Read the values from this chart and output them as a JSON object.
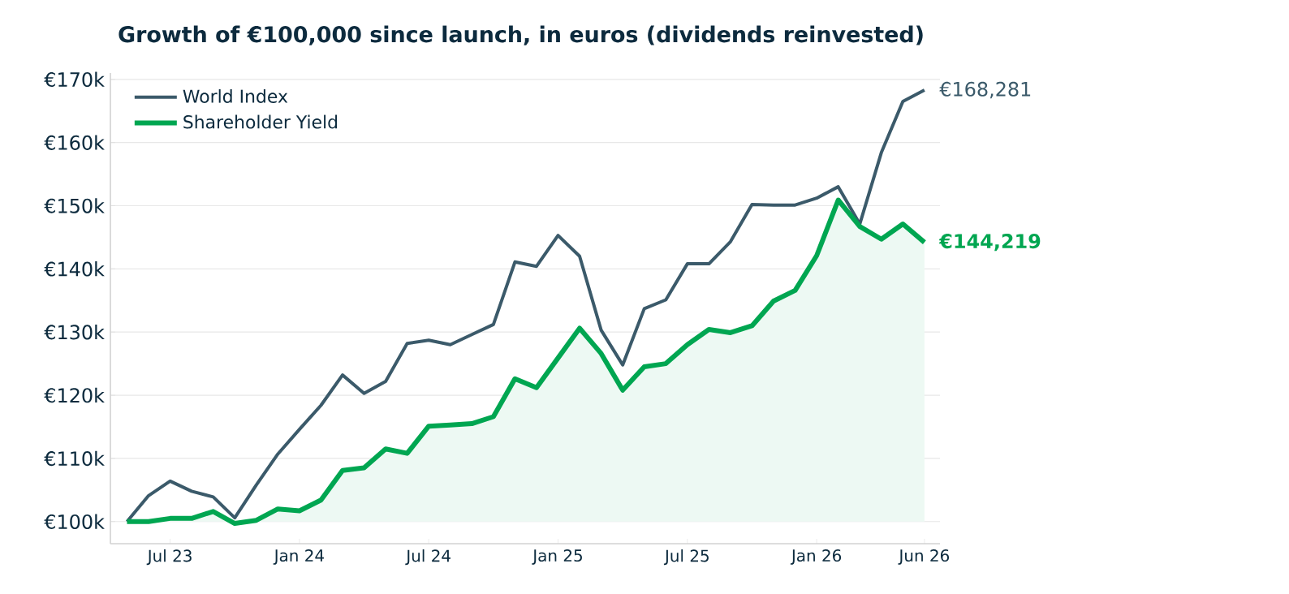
{
  "chart_data": {
    "type": "line",
    "title": "Growth of €100,000 since launch, in euros  (dividends reinvested)",
    "x": [
      "2023-05",
      "2023-06",
      "2023-07",
      "2023-08",
      "2023-09",
      "2023-10",
      "2023-11",
      "2023-12",
      "2024-01",
      "2024-02",
      "2024-03",
      "2024-04",
      "2024-05",
      "2024-06",
      "2024-07",
      "2024-08",
      "2024-09",
      "2024-10",
      "2024-11",
      "2024-12",
      "2025-01",
      "2025-02",
      "2025-03",
      "2025-04",
      "2025-05",
      "2025-06",
      "2025-07",
      "2025-08",
      "2025-09",
      "2025-10",
      "2025-11",
      "2025-12",
      "2026-01",
      "2026-02",
      "2026-03",
      "2026-04",
      "2026-05",
      "2026-06"
    ],
    "series": [
      {
        "name": "World Index",
        "color": "#3b5a6a",
        "values": [
          100,
          104.1,
          106.4,
          104.8,
          103.9,
          100.6,
          105.8,
          110.7,
          114.6,
          118.4,
          123.2,
          120.3,
          122.2,
          128.2,
          128.7,
          128.0,
          129.6,
          131.2,
          141.1,
          140.4,
          145.3,
          142.0,
          130.3,
          124.8,
          133.7,
          135.1,
          140.8,
          140.8,
          144.3,
          150.2,
          150.1,
          150.1,
          151.2,
          153.0,
          147.1,
          158.4,
          166.5,
          168.3
        ]
      },
      {
        "name": "Shareholder Yield",
        "type": "area",
        "color": "#00a651",
        "values": [
          100,
          100,
          100.5,
          100.5,
          101.6,
          99.7,
          100.2,
          102.0,
          101.7,
          103.4,
          108.1,
          108.5,
          111.5,
          110.8,
          115.1,
          115.3,
          115.5,
          116.6,
          122.6,
          121.2,
          125.9,
          130.6,
          126.6,
          120.8,
          124.5,
          125.0,
          128.0,
          130.4,
          129.9,
          131.0,
          134.9,
          136.6,
          142.1,
          150.9,
          146.7,
          144.7,
          147.1,
          144.2
        ]
      }
    ],
    "annotations": [
      {
        "text": "€168,281",
        "x": "2026-06",
        "y": 168.3
      },
      {
        "text": "€144,219",
        "x": "2026-06",
        "y": 144.2
      }
    ],
    "xlim": [
      "2023-04-08",
      "2026-06-23"
    ],
    "ylim": [
      96.5,
      171
    ],
    "xticks": [
      {
        "value": "2023-07",
        "label": "Jul 23"
      },
      {
        "value": "2024-01",
        "label": "Jan 24"
      },
      {
        "value": "2024-07",
        "label": "Jul 24"
      },
      {
        "value": "2025-01",
        "label": "Jan 25"
      },
      {
        "value": "2025-07",
        "label": "Jul 25"
      },
      {
        "value": "2026-01",
        "label": "Jan 26"
      },
      {
        "value": "2026-06",
        "label": "Jun 26"
      }
    ],
    "yticks": [
      {
        "value": 100,
        "label": "€100k"
      },
      {
        "value": 110,
        "label": "€110k"
      },
      {
        "value": 120,
        "label": "€120k"
      },
      {
        "value": 130,
        "label": "€130k"
      },
      {
        "value": 140,
        "label": "€140k"
      },
      {
        "value": 150,
        "label": "€150k"
      },
      {
        "value": 160,
        "label": "€160k"
      },
      {
        "value": 170,
        "label": "€170k"
      }
    ],
    "grid": "y",
    "legend": "top left"
  }
}
